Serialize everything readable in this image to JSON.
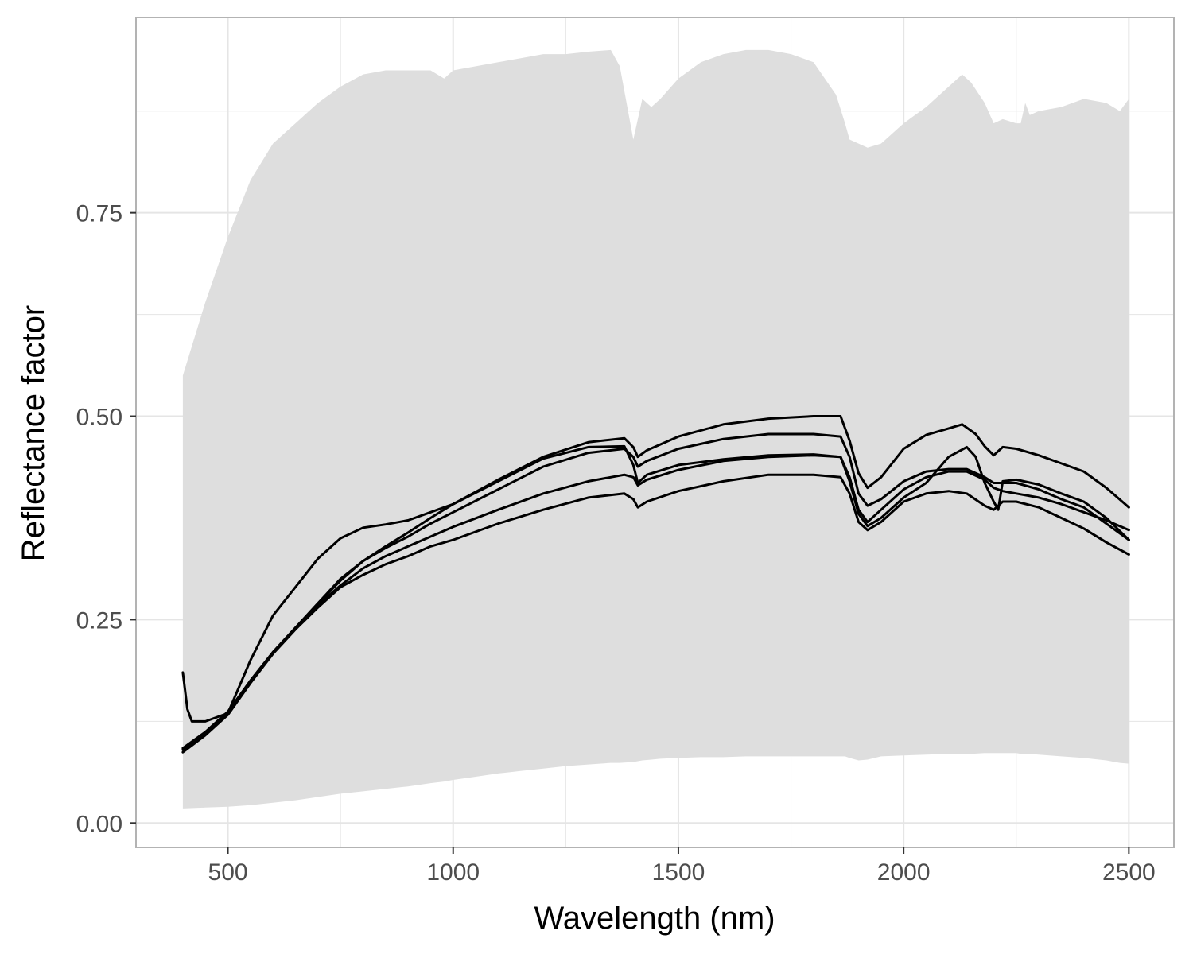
{
  "chart_data": {
    "type": "line",
    "title": "",
    "xlabel": "Wavelength (nm)",
    "ylabel": "Reflectance factor",
    "xlim": [
      296,
      2600
    ],
    "ylim": [
      -0.03,
      0.99
    ],
    "x_ticks": [
      500,
      1000,
      1500,
      2000,
      2500
    ],
    "x_tick_labels": [
      "500",
      "1000",
      "1500",
      "2000",
      "2500"
    ],
    "y_ticks": [
      0,
      0.25,
      0.5,
      0.75
    ],
    "y_tick_labels": [
      "0.00",
      "0.25",
      "0.50",
      "0.75"
    ],
    "x_minor_ticks": [
      750,
      1250,
      1750,
      2250
    ],
    "y_minor_ticks": [
      0.125,
      0.375,
      0.625,
      0.875
    ],
    "grid": true,
    "legend": "none",
    "colors": {
      "band": "#dedede",
      "line": "#000000",
      "grid": "#e5e5e5",
      "border": "#b3b3b3"
    },
    "band": {
      "x": [
        400,
        450,
        500,
        550,
        600,
        650,
        700,
        750,
        800,
        850,
        900,
        950,
        980,
        1000,
        1050,
        1100,
        1150,
        1200,
        1250,
        1300,
        1350,
        1370,
        1400,
        1420,
        1440,
        1460,
        1500,
        1550,
        1600,
        1650,
        1700,
        1750,
        1800,
        1850,
        1870,
        1880,
        1900,
        1920,
        1950,
        2000,
        2050,
        2100,
        2130,
        2150,
        2180,
        2200,
        2220,
        2250,
        2260,
        2270,
        2280,
        2300,
        2350,
        2400,
        2450,
        2480,
        2500
      ],
      "upper": [
        0.55,
        0.64,
        0.72,
        0.79,
        0.835,
        0.86,
        0.885,
        0.905,
        0.92,
        0.925,
        0.925,
        0.925,
        0.915,
        0.925,
        0.93,
        0.935,
        0.94,
        0.945,
        0.945,
        0.948,
        0.95,
        0.93,
        0.84,
        0.89,
        0.88,
        0.89,
        0.915,
        0.935,
        0.945,
        0.95,
        0.95,
        0.945,
        0.935,
        0.895,
        0.86,
        0.84,
        0.835,
        0.83,
        0.835,
        0.86,
        0.88,
        0.905,
        0.92,
        0.91,
        0.885,
        0.86,
        0.865,
        0.86,
        0.86,
        0.885,
        0.87,
        0.875,
        0.88,
        0.89,
        0.885,
        0.875,
        0.89
      ],
      "lower": [
        0.018,
        0.019,
        0.02,
        0.022,
        0.025,
        0.028,
        0.032,
        0.036,
        0.039,
        0.042,
        0.045,
        0.049,
        0.051,
        0.053,
        0.057,
        0.061,
        0.064,
        0.067,
        0.07,
        0.072,
        0.074,
        0.074,
        0.075,
        0.077,
        0.078,
        0.079,
        0.08,
        0.081,
        0.081,
        0.082,
        0.082,
        0.082,
        0.082,
        0.082,
        0.082,
        0.08,
        0.077,
        0.078,
        0.082,
        0.083,
        0.084,
        0.085,
        0.085,
        0.085,
        0.086,
        0.086,
        0.086,
        0.086,
        0.085,
        0.085,
        0.085,
        0.084,
        0.082,
        0.08,
        0.077,
        0.074,
        0.073
      ]
    },
    "series": [
      {
        "x": [
          400,
          410,
          420,
          450,
          500,
          550,
          600,
          650,
          700,
          750,
          800,
          850,
          900,
          950,
          1000,
          1100,
          1200,
          1300,
          1380,
          1400,
          1410,
          1430,
          1500,
          1600,
          1700,
          1800,
          1860,
          1880,
          1900,
          1920,
          1950,
          2000,
          2050,
          2100,
          2140,
          2160,
          2180,
          2200,
          2210,
          2220,
          2250,
          2300,
          2350,
          2400,
          2450,
          2500
        ],
        "y": [
          0.185,
          0.14,
          0.125,
          0.125,
          0.135,
          0.2,
          0.255,
          0.29,
          0.325,
          0.35,
          0.363,
          0.367,
          0.372,
          0.382,
          0.392,
          0.42,
          0.448,
          0.462,
          0.463,
          0.44,
          0.418,
          0.428,
          0.44,
          0.447,
          0.452,
          0.453,
          0.45,
          0.42,
          0.38,
          0.365,
          0.375,
          0.4,
          0.418,
          0.45,
          0.462,
          0.45,
          0.418,
          0.395,
          0.385,
          0.42,
          0.422,
          0.416,
          0.405,
          0.395,
          0.375,
          0.348
        ]
      },
      {
        "x": [
          400,
          450,
          500,
          550,
          600,
          650,
          700,
          750,
          800,
          850,
          900,
          950,
          1000,
          1100,
          1200,
          1300,
          1380,
          1400,
          1410,
          1430,
          1500,
          1600,
          1700,
          1800,
          1860,
          1880,
          1900,
          1920,
          1950,
          2000,
          2050,
          2100,
          2130,
          2160,
          2180,
          2200,
          2210,
          2220,
          2250,
          2300,
          2350,
          2400,
          2450,
          2500
        ],
        "y": [
          0.09,
          0.11,
          0.135,
          0.175,
          0.21,
          0.24,
          0.27,
          0.298,
          0.322,
          0.34,
          0.357,
          0.375,
          0.392,
          0.422,
          0.45,
          0.468,
          0.473,
          0.462,
          0.45,
          0.458,
          0.475,
          0.49,
          0.497,
          0.5,
          0.5,
          0.47,
          0.43,
          0.412,
          0.425,
          0.46,
          0.477,
          0.485,
          0.49,
          0.478,
          0.463,
          0.452,
          0.457,
          0.462,
          0.46,
          0.452,
          0.442,
          0.432,
          0.412,
          0.388
        ]
      },
      {
        "x": [
          400,
          450,
          500,
          550,
          600,
          650,
          700,
          750,
          800,
          850,
          900,
          950,
          1000,
          1100,
          1200,
          1300,
          1380,
          1400,
          1410,
          1430,
          1500,
          1600,
          1700,
          1800,
          1860,
          1880,
          1900,
          1920,
          1950,
          2000,
          2050,
          2100,
          2140,
          2180,
          2200,
          2220,
          2250,
          2300,
          2350,
          2400,
          2450,
          2500
        ],
        "y": [
          0.092,
          0.112,
          0.137,
          0.175,
          0.21,
          0.24,
          0.268,
          0.292,
          0.313,
          0.328,
          0.34,
          0.352,
          0.364,
          0.385,
          0.405,
          0.42,
          0.428,
          0.425,
          0.415,
          0.422,
          0.434,
          0.445,
          0.45,
          0.452,
          0.45,
          0.425,
          0.385,
          0.37,
          0.385,
          0.41,
          0.425,
          0.432,
          0.432,
          0.422,
          0.412,
          0.408,
          0.405,
          0.4,
          0.392,
          0.382,
          0.372,
          0.36
        ]
      },
      {
        "x": [
          400,
          450,
          500,
          550,
          600,
          650,
          700,
          750,
          800,
          850,
          900,
          950,
          1000,
          1100,
          1200,
          1300,
          1380,
          1400,
          1410,
          1430,
          1500,
          1600,
          1700,
          1800,
          1860,
          1880,
          1900,
          1920,
          1950,
          2000,
          2050,
          2100,
          2140,
          2180,
          2200,
          2220,
          2250,
          2300,
          2350,
          2400,
          2450,
          2500
        ],
        "y": [
          0.087,
          0.108,
          0.133,
          0.172,
          0.208,
          0.238,
          0.265,
          0.29,
          0.305,
          0.318,
          0.328,
          0.34,
          0.348,
          0.368,
          0.385,
          0.4,
          0.405,
          0.398,
          0.388,
          0.395,
          0.408,
          0.42,
          0.428,
          0.428,
          0.425,
          0.405,
          0.37,
          0.36,
          0.37,
          0.395,
          0.405,
          0.408,
          0.405,
          0.39,
          0.385,
          0.395,
          0.395,
          0.388,
          0.375,
          0.362,
          0.345,
          0.33
        ]
      },
      {
        "x": [
          400,
          450,
          500,
          550,
          600,
          650,
          700,
          750,
          800,
          850,
          900,
          950,
          1000,
          1100,
          1200,
          1300,
          1380,
          1400,
          1410,
          1430,
          1500,
          1600,
          1700,
          1800,
          1860,
          1880,
          1900,
          1920,
          1950,
          2000,
          2050,
          2100,
          2140,
          2180,
          2200,
          2220,
          2250,
          2300,
          2350,
          2400,
          2450,
          2500
        ],
        "y": [
          0.09,
          0.11,
          0.136,
          0.175,
          0.21,
          0.24,
          0.27,
          0.3,
          0.322,
          0.338,
          0.352,
          0.368,
          0.382,
          0.41,
          0.438,
          0.455,
          0.46,
          0.45,
          0.438,
          0.445,
          0.46,
          0.472,
          0.478,
          0.478,
          0.475,
          0.45,
          0.405,
          0.39,
          0.398,
          0.42,
          0.432,
          0.435,
          0.435,
          0.425,
          0.418,
          0.418,
          0.418,
          0.41,
          0.398,
          0.388,
          0.368,
          0.348
        ]
      }
    ]
  }
}
